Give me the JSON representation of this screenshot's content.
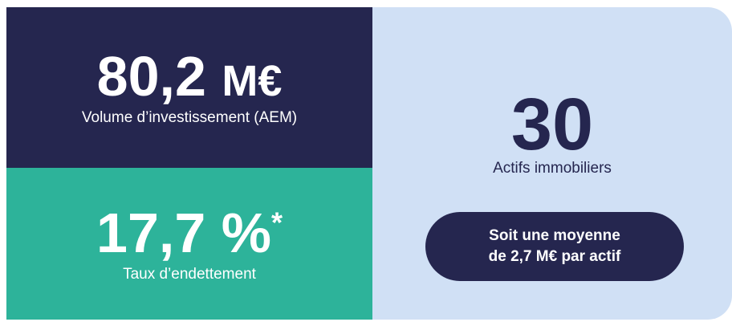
{
  "cards": [
    {
      "value": "80,2",
      "unit": "M€",
      "label": "Volume d’investissement (AEM)"
    },
    {
      "value": "17,7 %",
      "note": "*",
      "label": "Taux d’endettement"
    },
    {
      "value": "30",
      "label": "Actifs immobiliers",
      "badge": [
        "Soit une moyenne",
        "de 2,7 M€ par actif"
      ]
    }
  ]
}
